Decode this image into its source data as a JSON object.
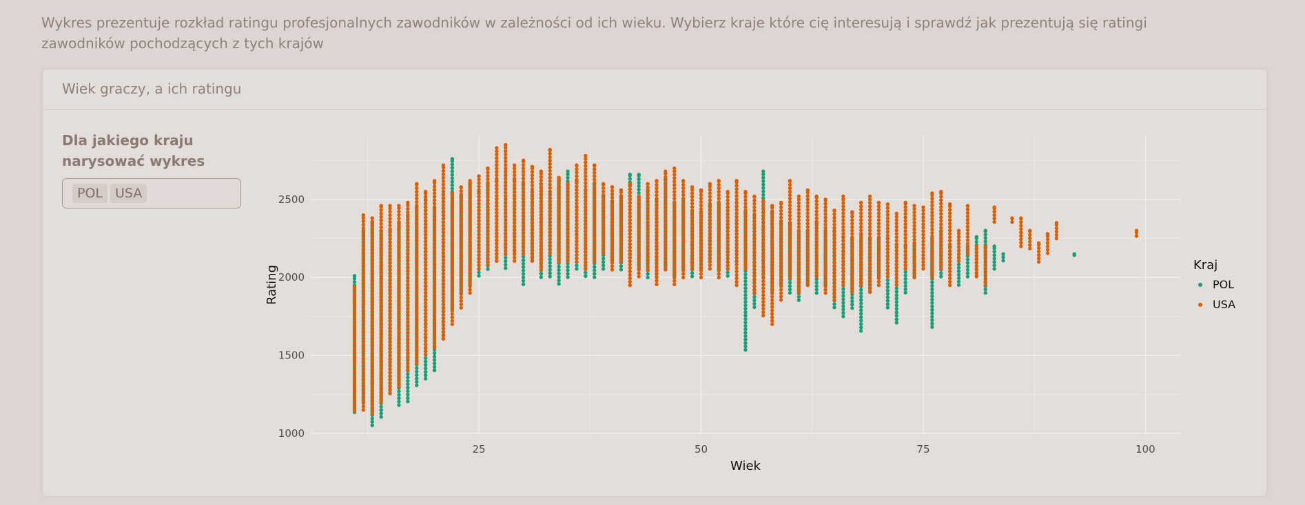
{
  "intro_text": "Wykres prezentuje rozkład ratingu profesjonalnych zawodników w zależności od ich wieku. Wybierz kraje które cię interesują i sprawdź jak prezentują się ratingi zawodników pochodzących z tych krajów",
  "card": {
    "title": "Wiek graczy, a ich ratingu"
  },
  "sidebar": {
    "label": "Dla jakiego kraju narysować wykres",
    "selected": [
      "POL",
      "USA"
    ]
  },
  "colors": {
    "POL": "#1b9e77",
    "USA": "#d95f02",
    "grid": "#f1eeec",
    "background": "#ddd5d1"
  },
  "chart_data": {
    "type": "scatter",
    "xlabel": "Wiek",
    "ylabel": "Rating",
    "xlim": [
      6,
      104
    ],
    "ylim": [
      995,
      2910
    ],
    "x_ticks": [
      25,
      50,
      75,
      100
    ],
    "y_ticks": [
      1000,
      1500,
      2000,
      2500
    ],
    "grid": true,
    "legend": {
      "title": "Kraj",
      "position": "right",
      "entries": [
        "POL",
        "USA"
      ]
    },
    "series": [
      {
        "name": "POL",
        "color": "#1b9e77",
        "ranges": [
          [
            11,
            1130,
            2010
          ],
          [
            12,
            1200,
            2300
          ],
          [
            13,
            1050,
            2350
          ],
          [
            14,
            1100,
            2300
          ],
          [
            15,
            1250,
            2300
          ],
          [
            16,
            1180,
            2350
          ],
          [
            17,
            1200,
            2400
          ],
          [
            18,
            1300,
            2450
          ],
          [
            19,
            1350,
            2500
          ],
          [
            20,
            1400,
            2450
          ],
          [
            21,
            1600,
            2550
          ],
          [
            22,
            1800,
            2760
          ],
          [
            23,
            1900,
            2520
          ],
          [
            24,
            1950,
            2600
          ],
          [
            25,
            2000,
            2550
          ],
          [
            26,
            2050,
            2600
          ],
          [
            27,
            2100,
            2620
          ],
          [
            28,
            2050,
            2680
          ],
          [
            29,
            2150,
            2620
          ],
          [
            30,
            1950,
            2600
          ],
          [
            31,
            2100,
            2550
          ],
          [
            32,
            2000,
            2600
          ],
          [
            33,
            2000,
            2550
          ],
          [
            34,
            1950,
            2620
          ],
          [
            35,
            2000,
            2680
          ],
          [
            36,
            2050,
            2620
          ],
          [
            37,
            2000,
            2560
          ],
          [
            38,
            2000,
            2600
          ],
          [
            39,
            2050,
            2520
          ],
          [
            40,
            2100,
            2480
          ],
          [
            41,
            2050,
            2520
          ],
          [
            42,
            2100,
            2660
          ],
          [
            43,
            2050,
            2660
          ],
          [
            44,
            2000,
            2560
          ],
          [
            45,
            2000,
            2500
          ],
          [
            46,
            2050,
            2630
          ],
          [
            47,
            2000,
            2480
          ],
          [
            48,
            2050,
            2500
          ],
          [
            49,
            2000,
            2420
          ],
          [
            50,
            2050,
            2420
          ],
          [
            51,
            2100,
            2460
          ],
          [
            52,
            2050,
            2480
          ],
          [
            53,
            2000,
            2450
          ],
          [
            54,
            2100,
            2480
          ],
          [
            55,
            1530,
            2420
          ],
          [
            56,
            1800,
            2400
          ],
          [
            57,
            2000,
            2680
          ],
          [
            58,
            1900,
            2420
          ],
          [
            59,
            1950,
            2350
          ],
          [
            60,
            1900,
            2350
          ],
          [
            61,
            1850,
            2300
          ],
          [
            62,
            1950,
            2300
          ],
          [
            63,
            1900,
            2350
          ],
          [
            64,
            1950,
            2300
          ],
          [
            65,
            1800,
            2300
          ],
          [
            66,
            1750,
            2260
          ],
          [
            67,
            1800,
            2250
          ],
          [
            68,
            1650,
            2280
          ],
          [
            69,
            1900,
            2250
          ],
          [
            70,
            2000,
            2250
          ],
          [
            71,
            1800,
            2250
          ],
          [
            72,
            1700,
            2210
          ],
          [
            73,
            1900,
            2200
          ],
          [
            74,
            2000,
            2220
          ],
          [
            76,
            1680,
            2250
          ],
          [
            77,
            2000,
            2300
          ],
          [
            78,
            2050,
            2200
          ],
          [
            79,
            1950,
            2260
          ],
          [
            80,
            2000,
            2200
          ],
          [
            81,
            2000,
            2260
          ],
          [
            82,
            1900,
            2300
          ],
          [
            83,
            2050,
            2200
          ],
          [
            84,
            2100,
            2150
          ],
          [
            92,
            2140,
            2150
          ]
        ]
      },
      {
        "name": "USA",
        "color": "#d95f02",
        "ranges": [
          [
            11,
            1140,
            1940
          ],
          [
            12,
            1150,
            2400
          ],
          [
            13,
            1120,
            2380
          ],
          [
            14,
            1200,
            2460
          ],
          [
            15,
            1250,
            2460
          ],
          [
            16,
            1300,
            2460
          ],
          [
            17,
            1400,
            2480
          ],
          [
            18,
            1450,
            2600
          ],
          [
            19,
            1500,
            2550
          ],
          [
            20,
            1550,
            2620
          ],
          [
            21,
            1600,
            2720
          ],
          [
            22,
            1700,
            2540
          ],
          [
            23,
            1800,
            2580
          ],
          [
            24,
            1900,
            2620
          ],
          [
            25,
            2050,
            2650
          ],
          [
            26,
            2080,
            2700
          ],
          [
            27,
            2100,
            2830
          ],
          [
            28,
            2150,
            2850
          ],
          [
            29,
            2100,
            2720
          ],
          [
            30,
            2150,
            2750
          ],
          [
            31,
            2100,
            2710
          ],
          [
            32,
            2050,
            2680
          ],
          [
            33,
            2150,
            2820
          ],
          [
            34,
            2100,
            2640
          ],
          [
            35,
            2100,
            2600
          ],
          [
            36,
            2100,
            2720
          ],
          [
            37,
            2050,
            2780
          ],
          [
            38,
            2100,
            2720
          ],
          [
            39,
            2150,
            2600
          ],
          [
            40,
            2050,
            2580
          ],
          [
            41,
            2100,
            2560
          ],
          [
            42,
            1950,
            2600
          ],
          [
            43,
            2000,
            2520
          ],
          [
            44,
            2050,
            2600
          ],
          [
            45,
            1950,
            2620
          ],
          [
            46,
            2050,
            2680
          ],
          [
            47,
            1950,
            2700
          ],
          [
            48,
            2000,
            2620
          ],
          [
            49,
            2050,
            2580
          ],
          [
            50,
            2000,
            2560
          ],
          [
            51,
            2050,
            2600
          ],
          [
            52,
            2000,
            2620
          ],
          [
            53,
            2050,
            2550
          ],
          [
            54,
            1950,
            2620
          ],
          [
            55,
            2050,
            2550
          ],
          [
            56,
            1900,
            2520
          ],
          [
            57,
            1750,
            2490
          ],
          [
            58,
            1700,
            2460
          ],
          [
            59,
            1850,
            2480
          ],
          [
            60,
            2000,
            2620
          ],
          [
            61,
            1900,
            2520
          ],
          [
            62,
            1950,
            2560
          ],
          [
            63,
            2000,
            2520
          ],
          [
            64,
            1900,
            2500
          ],
          [
            65,
            1850,
            2430
          ],
          [
            66,
            1950,
            2520
          ],
          [
            67,
            1900,
            2420
          ],
          [
            68,
            1950,
            2480
          ],
          [
            69,
            1900,
            2520
          ],
          [
            70,
            1950,
            2480
          ],
          [
            71,
            2000,
            2470
          ],
          [
            72,
            1950,
            2410
          ],
          [
            73,
            2050,
            2480
          ],
          [
            74,
            2000,
            2460
          ],
          [
            75,
            2050,
            2450
          ],
          [
            76,
            2000,
            2540
          ],
          [
            77,
            2050,
            2550
          ],
          [
            78,
            1950,
            2470
          ],
          [
            79,
            2100,
            2300
          ],
          [
            80,
            2150,
            2460
          ],
          [
            81,
            2000,
            2200
          ],
          [
            82,
            1950,
            2200
          ],
          [
            83,
            2350,
            2450
          ],
          [
            85,
            2350,
            2380
          ],
          [
            86,
            2200,
            2380
          ],
          [
            87,
            2180,
            2300
          ],
          [
            88,
            2100,
            2220
          ],
          [
            89,
            2150,
            2280
          ],
          [
            90,
            2250,
            2350
          ],
          [
            99,
            2260,
            2300
          ]
        ]
      }
    ]
  }
}
